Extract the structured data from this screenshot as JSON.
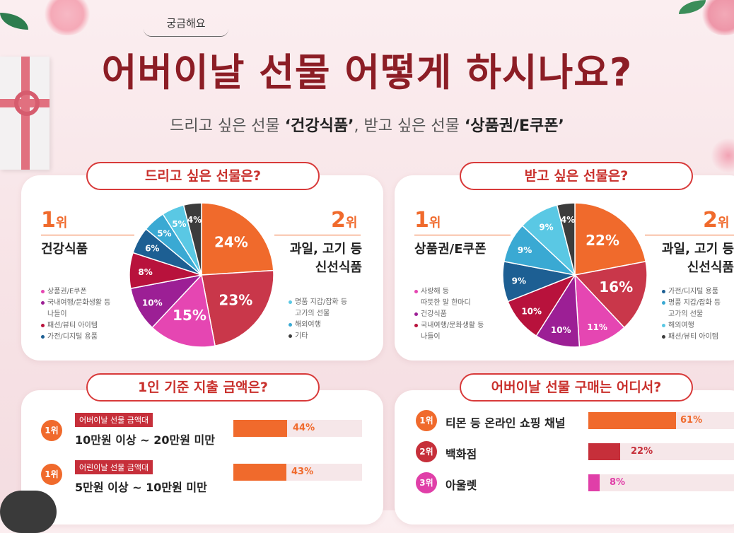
{
  "header": {
    "bubble": "궁금해요",
    "title": "어버이날 선물 어떻게 하시나요?",
    "subtitle_parts": [
      "드리고 싶은 선물 ",
      "‘건강식품’",
      ", 받고 싶은 선물 ",
      "‘상품권/E쿠폰’"
    ]
  },
  "colors": {
    "accent": "#c9302c",
    "orange": "#f06a2c",
    "crimson": "#c62f3a",
    "pink": "#e03fa8"
  },
  "give": {
    "heading": "드리고 싶은 선물은?",
    "rank1": {
      "num": "1",
      "unit": "위",
      "label": "건강식품"
    },
    "rank2": {
      "num": "2",
      "unit": "위",
      "label_line1": "과일, 고기 등",
      "label_line2": "신선식품"
    },
    "legend_left": [
      "상품권/E쿠폰",
      "국내여행/문화생활 등",
      "나들이",
      "패션/뷰티 아이템",
      "가전/디지털 용품"
    ],
    "legend_right": [
      "명품 지갑/잡화 등",
      "고가의 선물",
      "해외여행",
      "기타"
    ]
  },
  "receive": {
    "heading": "받고 싶은 선물은?",
    "rank1": {
      "num": "1",
      "unit": "위",
      "label": "상품권/E쿠폰"
    },
    "rank2": {
      "num": "2",
      "unit": "위",
      "label_line1": "과일, 고기 등",
      "label_line2": "신선식품"
    },
    "legend_left": [
      "사랑해 등",
      "따뜻한 말 한마디",
      "건강식품",
      "국내여행/문화생활 등",
      "나들이"
    ],
    "legend_right": [
      "가전/디지털 용품",
      "명품 지갑/잡화 등",
      "고가의 선물",
      "해외여행",
      "패션/뷰티 아이템"
    ]
  },
  "spend": {
    "heading": "1인 기준 지출 금액은?",
    "rows": [
      {
        "rank": "1위",
        "tag": "어버이날 선물 금액대",
        "text": "10만원 이상 ~ 20만원 미만",
        "pct": "44%"
      },
      {
        "rank": "1위",
        "tag": "어린이날 선물 금액대",
        "text": "5만원 이상 ~ 10만원 미만",
        "pct": "43%"
      }
    ]
  },
  "where": {
    "heading": "어버이날 선물 구매는 어디서?",
    "rows": [
      {
        "rank": "1위",
        "text": "티몬 등 온라인 쇼핑 채널",
        "pct": "61%"
      },
      {
        "rank": "2위",
        "text": "백화점",
        "pct": "22%"
      },
      {
        "rank": "3위",
        "text": "아울렛",
        "pct": "8%"
      }
    ]
  },
  "chart_data": [
    {
      "type": "pie",
      "title": "드리고 싶은 선물은?",
      "values": [
        24,
        23,
        15,
        10,
        8,
        6,
        5,
        5,
        4
      ],
      "labels": [
        "24%",
        "23%",
        "15%",
        "10%",
        "8%",
        "6%",
        "5%",
        "5%",
        "4%"
      ],
      "colors": [
        "#f06a2c",
        "#c9374a",
        "#e546b2",
        "#9c1f95",
        "#b8123c",
        "#1d5f93",
        "#3aa9d3",
        "#5ac8e4",
        "#3c3c3c"
      ]
    },
    {
      "type": "pie",
      "title": "받고 싶은 선물은?",
      "values": [
        22,
        16,
        11,
        10,
        10,
        9,
        9,
        9,
        4
      ],
      "labels": [
        "22%",
        "16%",
        "11%",
        "10%",
        "10%",
        "9%",
        "9%",
        "9%",
        "4%"
      ],
      "colors": [
        "#f06a2c",
        "#c9374a",
        "#e546b2",
        "#9c1f95",
        "#b8123c",
        "#1d5f93",
        "#3aa9d3",
        "#5ac8e4",
        "#3c3c3c"
      ]
    },
    {
      "type": "bar",
      "title": "1인 기준 지출 금액은?",
      "categories": [
        "10만원 이상 ~ 20만원 미만",
        "5만원 이상 ~ 10만원 미만"
      ],
      "values": [
        44,
        43
      ]
    },
    {
      "type": "bar",
      "title": "어버이날 선물 구매는 어디서?",
      "categories": [
        "티몬 등 온라인 쇼핑 채널",
        "백화점",
        "아울렛"
      ],
      "values": [
        61,
        22,
        8
      ]
    }
  ]
}
